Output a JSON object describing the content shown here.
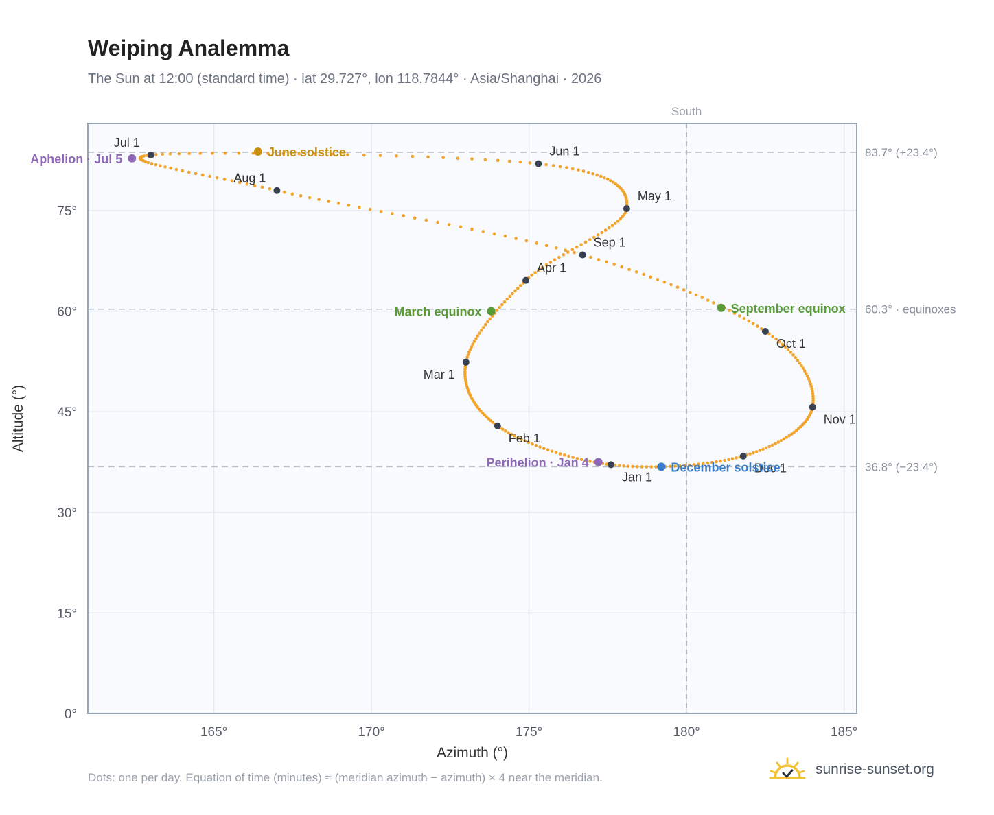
{
  "title": "Weiping Analemma",
  "subtitle": "The Sun at 12:00 (standard time) · lat 29.727°, lon 118.7844° · Asia/Shanghai · 2026",
  "footnote": "Dots: one per day. Equation of time (minutes) ≈ (meridian azimuth − azimuth) × 4 near the meridian.",
  "brand": "sunrise-sunset.org",
  "colors": {
    "path": "#f2a32a",
    "month_marker": "#374151",
    "solstice_june": "#c8900e",
    "equinox": "#5a9a38",
    "solstice_dec": "#3a7dc8",
    "apsis": "#9068b8",
    "plot_bg": "#f8fafd",
    "grid": "#e2e8ef",
    "axis": "#9aa5b4",
    "brand_icon": "#f2c230"
  },
  "chart_data": {
    "type": "scatter",
    "title": "Weiping Analemma",
    "xlabel": "Azimuth (°)",
    "ylabel": "Altitude (°)",
    "xlim": [
      161,
      185.4
    ],
    "ylim": [
      0,
      88
    ],
    "x_ticks": [
      165,
      170,
      175,
      180,
      185
    ],
    "y_ticks": [
      0,
      15,
      30,
      45,
      60,
      75
    ],
    "x_tick_labels": [
      "165°",
      "170°",
      "175°",
      "180°",
      "185°"
    ],
    "y_tick_labels": [
      "0°",
      "15°",
      "30°",
      "45°",
      "60°",
      "75°"
    ],
    "grid": true,
    "meridian": {
      "azimuth": 180,
      "label": "South"
    },
    "reference_lines": [
      {
        "altitude": 83.7,
        "label": "83.7° (+23.4°)"
      },
      {
        "altitude": 60.3,
        "label": "60.3° · equinoxes"
      },
      {
        "altitude": 36.8,
        "label": "36.8° (−23.4°)"
      }
    ],
    "series": [
      {
        "points": [
          [
            177.6,
            37.1
          ],
          [
            174.0,
            42.9
          ],
          [
            173.0,
            52.4
          ],
          [
            174.9,
            64.6
          ],
          [
            178.1,
            75.3
          ],
          [
            175.3,
            82.0
          ],
          [
            163.0,
            83.3
          ],
          [
            167.0,
            78.0
          ],
          [
            176.7,
            68.4
          ],
          [
            182.5,
            57.0
          ],
          [
            184.0,
            45.7
          ],
          [
            181.8,
            38.4
          ]
        ]
      }
    ],
    "month_markers": [
      {
        "label": "Jan 1",
        "azimuth": 177.6,
        "altitude": 37.1,
        "anchor": "below-right"
      },
      {
        "label": "Feb 1",
        "azimuth": 174.0,
        "altitude": 42.9,
        "anchor": "below-right"
      },
      {
        "label": "Mar 1",
        "azimuth": 173.0,
        "altitude": 52.4,
        "anchor": "below-left"
      },
      {
        "label": "Apr 1",
        "azimuth": 174.9,
        "altitude": 64.6,
        "anchor": "above-right"
      },
      {
        "label": "May 1",
        "azimuth": 178.1,
        "altitude": 75.3,
        "anchor": "above-right"
      },
      {
        "label": "Jun 1",
        "azimuth": 175.3,
        "altitude": 82.0,
        "anchor": "above-right"
      },
      {
        "label": "Jul 1",
        "azimuth": 163.0,
        "altitude": 83.3,
        "anchor": "above-left"
      },
      {
        "label": "Aug 1",
        "azimuth": 167.0,
        "altitude": 78.0,
        "anchor": "above-left"
      },
      {
        "label": "Sep 1",
        "azimuth": 176.7,
        "altitude": 68.4,
        "anchor": "above-right"
      },
      {
        "label": "Oct 1",
        "azimuth": 182.5,
        "altitude": 57.0,
        "anchor": "below-right"
      },
      {
        "label": "Nov 1",
        "azimuth": 184.0,
        "altitude": 45.7,
        "anchor": "below-right"
      },
      {
        "label": "Dec 1",
        "azimuth": 181.8,
        "altitude": 38.4,
        "anchor": "below-right"
      }
    ],
    "events": [
      {
        "label": "June solstice",
        "azimuth": 166.4,
        "altitude": 83.8,
        "color": "#c8900e",
        "side": "right"
      },
      {
        "label": "December solstice",
        "azimuth": 179.2,
        "altitude": 36.8,
        "color": "#3a7dc8",
        "side": "right"
      },
      {
        "label": "March equinox",
        "azimuth": 173.8,
        "altitude": 60.0,
        "color": "#5a9a38",
        "side": "left"
      },
      {
        "label": "September equinox",
        "azimuth": 181.1,
        "altitude": 60.5,
        "color": "#5a9a38",
        "side": "right"
      },
      {
        "label": "Aphelion · Jul 5",
        "azimuth": 162.4,
        "altitude": 82.8,
        "color": "#9068b8",
        "side": "left"
      },
      {
        "label": "Perihelion · Jan 4",
        "azimuth": 177.2,
        "altitude": 37.5,
        "color": "#9068b8",
        "side": "left"
      }
    ]
  }
}
